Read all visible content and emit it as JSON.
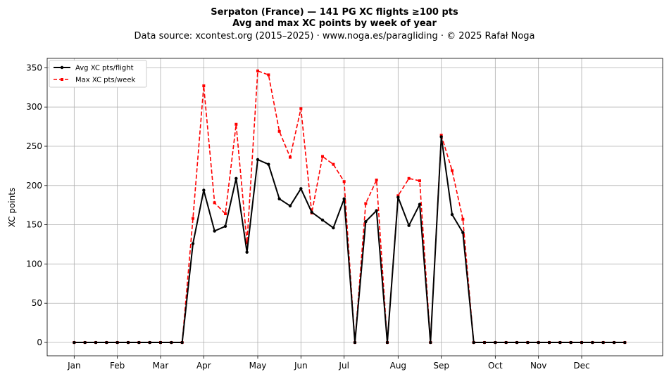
{
  "chart_data": {
    "type": "line",
    "title_line1": "Serpaton (France)  —  141 PG XC flights ≥100 pts",
    "title_line2": "Avg and max XC points by week of year",
    "subtitle": "Data source: xcontest.org (2015–2025)  ·  www.noga.es/paragliding  ·  © 2025 Rafał Noga",
    "xlabel": "",
    "ylabel": "XC points",
    "ylim": [
      -17,
      362
    ],
    "xlim": [
      -2.5,
      54.5
    ],
    "yticks": [
      0,
      50,
      100,
      150,
      200,
      250,
      300,
      350
    ],
    "xtick_positions": [
      0,
      4,
      8,
      12,
      17,
      21,
      25,
      30,
      34,
      39,
      43,
      47
    ],
    "xtick_labels": [
      "Jan",
      "Feb",
      "Mar",
      "Apr",
      "May",
      "Jun",
      "Jul",
      "Aug",
      "Sep",
      "Oct",
      "Nov",
      "Dec"
    ],
    "grid": true,
    "legend": "top-left",
    "x": [
      0,
      1,
      2,
      3,
      4,
      5,
      6,
      7,
      8,
      9,
      10,
      11,
      12,
      13,
      14,
      15,
      16,
      17,
      18,
      19,
      20,
      21,
      22,
      23,
      24,
      25,
      26,
      27,
      28,
      29,
      30,
      31,
      32,
      33,
      34,
      35,
      36,
      37,
      38,
      39,
      40,
      41,
      42,
      43,
      44,
      45,
      46,
      47,
      48,
      49,
      50,
      51
    ],
    "series": [
      {
        "name": "Avg XC pts/flight",
        "color": "#000000",
        "style": "solid",
        "marker": "circle",
        "values": [
          0,
          0,
          0,
          0,
          0,
          0,
          0,
          0,
          0,
          0,
          0,
          126,
          194,
          142,
          148,
          209,
          115,
          233,
          227,
          183,
          174,
          196,
          166,
          156,
          146,
          183,
          0,
          154,
          168,
          0,
          185,
          149,
          176,
          0,
          262,
          163,
          140,
          0,
          0,
          0,
          0,
          0,
          0,
          0,
          0,
          0,
          0,
          0,
          0,
          0,
          0,
          0
        ]
      },
      {
        "name": "Max XC pts/week",
        "color": "#ff0000",
        "style": "dashed",
        "marker": "square",
        "values": [
          0,
          0,
          0,
          0,
          0,
          0,
          0,
          0,
          0,
          0,
          0,
          158,
          327,
          178,
          164,
          278,
          127,
          346,
          341,
          269,
          236,
          298,
          165,
          237,
          227,
          205,
          0,
          177,
          207,
          0,
          187,
          209,
          206,
          0,
          264,
          219,
          157,
          0,
          0,
          0,
          0,
          0,
          0,
          0,
          0,
          0,
          0,
          0,
          0,
          0,
          0,
          0
        ]
      }
    ]
  }
}
